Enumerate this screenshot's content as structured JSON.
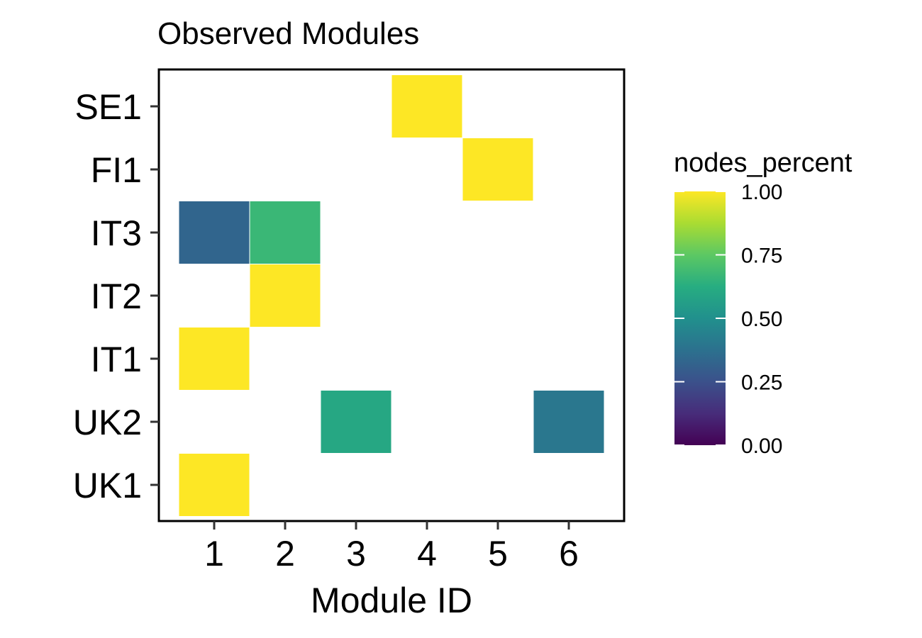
{
  "chart_data": {
    "type": "heatmap",
    "title": "Observed Modules",
    "xlabel": "Module ID",
    "ylabel": "",
    "x_categories": [
      "1",
      "2",
      "3",
      "4",
      "5",
      "6"
    ],
    "y_categories": [
      "UK1",
      "UK2",
      "IT1",
      "IT2",
      "IT3",
      "FI1",
      "SE1"
    ],
    "cells": [
      {
        "x": "1",
        "y": "UK1",
        "value": 1.0
      },
      {
        "x": "3",
        "y": "UK2",
        "value": 0.6
      },
      {
        "x": "6",
        "y": "UK2",
        "value": 0.4
      },
      {
        "x": "1",
        "y": "IT1",
        "value": 1.0
      },
      {
        "x": "2",
        "y": "IT2",
        "value": 1.0
      },
      {
        "x": "1",
        "y": "IT3",
        "value": 0.33
      },
      {
        "x": "2",
        "y": "IT3",
        "value": 0.67
      },
      {
        "x": "5",
        "y": "FI1",
        "value": 1.0
      },
      {
        "x": "4",
        "y": "SE1",
        "value": 1.0
      }
    ],
    "legend": {
      "title": "nodes_percent",
      "position": "right",
      "range": [
        0,
        1
      ],
      "ticks": [
        "0.00",
        "0.25",
        "0.50",
        "0.75",
        "1.00"
      ],
      "colormap": "viridis"
    },
    "grid": false
  }
}
